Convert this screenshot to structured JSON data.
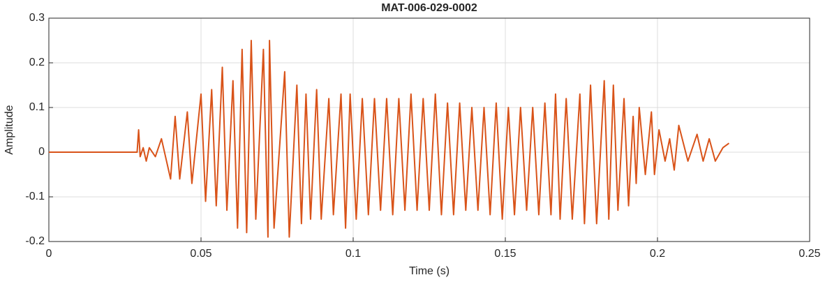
{
  "chart_data": {
    "type": "line",
    "title": "MAT-006-029-0002",
    "x_label": "Time (s)",
    "y_label": "Amplitude",
    "color": "#d95319",
    "grid": true,
    "xlim": [
      0,
      0.25
    ],
    "ylim": [
      -0.2,
      0.3
    ],
    "xticks": [
      0,
      0.05,
      0.1,
      0.15,
      0.2,
      0.25
    ],
    "yticks": [
      -0.2,
      -0.1,
      0,
      0.1,
      0.2,
      0.3
    ],
    "x": [
      0,
      0.029,
      0.0295,
      0.03,
      0.031,
      0.032,
      0.033,
      0.035,
      0.037,
      0.039,
      0.04,
      0.0415,
      0.043,
      0.0455,
      0.047,
      0.05,
      0.0515,
      0.0535,
      0.055,
      0.057,
      0.0585,
      0.0605,
      0.062,
      0.0635,
      0.065,
      0.0665,
      0.068,
      0.0705,
      0.072,
      0.0725,
      0.074,
      0.0775,
      0.079,
      0.0815,
      0.083,
      0.0845,
      0.086,
      0.088,
      0.0895,
      0.092,
      0.0935,
      0.096,
      0.0975,
      0.099,
      0.101,
      0.103,
      0.105,
      0.107,
      0.109,
      0.111,
      0.113,
      0.115,
      0.117,
      0.119,
      0.121,
      0.123,
      0.125,
      0.127,
      0.129,
      0.131,
      0.133,
      0.135,
      0.137,
      0.139,
      0.141,
      0.143,
      0.145,
      0.147,
      0.149,
      0.151,
      0.153,
      0.155,
      0.157,
      0.159,
      0.161,
      0.163,
      0.165,
      0.1665,
      0.168,
      0.17,
      0.172,
      0.1745,
      0.176,
      0.178,
      0.18,
      0.1825,
      0.184,
      0.1855,
      0.187,
      0.189,
      0.1905,
      0.192,
      0.193,
      0.194,
      0.196,
      0.198,
      0.199,
      0.2005,
      0.2025,
      0.204,
      0.2055,
      0.207,
      0.21,
      0.213,
      0.215,
      0.217,
      0.219,
      0.2215,
      0.2235
    ],
    "values": [
      0,
      0,
      0.05,
      -0.01,
      0.01,
      -0.02,
      0.01,
      -0.01,
      0.03,
      -0.03,
      -0.06,
      0.08,
      -0.06,
      0.09,
      -0.07,
      0.13,
      -0.11,
      0.14,
      -0.12,
      0.19,
      -0.13,
      0.16,
      -0.17,
      0.23,
      -0.18,
      0.25,
      -0.15,
      0.23,
      -0.19,
      0.25,
      -0.17,
      0.18,
      -0.19,
      0.15,
      -0.16,
      0.13,
      -0.15,
      0.14,
      -0.15,
      0.12,
      -0.14,
      0.13,
      -0.17,
      0.13,
      -0.15,
      0.12,
      -0.14,
      0.12,
      -0.13,
      0.12,
      -0.14,
      0.12,
      -0.13,
      0.13,
      -0.13,
      0.12,
      -0.13,
      0.13,
      -0.14,
      0.11,
      -0.14,
      0.11,
      -0.13,
      0.1,
      -0.13,
      0.1,
      -0.14,
      0.11,
      -0.15,
      0.1,
      -0.14,
      0.1,
      -0.13,
      0.1,
      -0.14,
      0.11,
      -0.14,
      0.13,
      -0.15,
      0.12,
      -0.15,
      0.13,
      -0.16,
      0.15,
      -0.16,
      0.16,
      -0.15,
      0.15,
      -0.13,
      0.12,
      -0.12,
      0.08,
      -0.07,
      0.1,
      -0.05,
      0.09,
      -0.05,
      0.05,
      -0.02,
      0.03,
      -0.04,
      0.06,
      -0.02,
      0.04,
      -0.02,
      0.03,
      -0.02,
      0.01,
      0.02
    ]
  }
}
